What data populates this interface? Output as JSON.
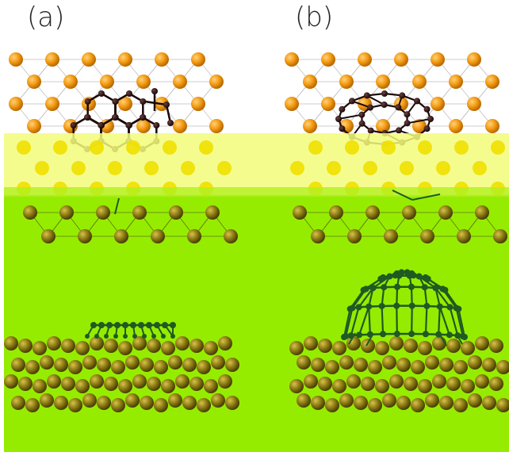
{
  "panels": [
    {
      "label": "(a)"
    },
    {
      "label": "(b)"
    }
  ],
  "colors": {
    "substrate_atom_top": "#f39a12",
    "substrate_atom_side": "#8a7a14",
    "carbon_atom": "#2a1414",
    "carbon_cluster_side": "#1e5a22",
    "overlay_yellow": "#f3fb7a",
    "overlay_green": "#96ec00",
    "background": "#ffffff"
  },
  "icons": {
    "substrate": "sphere-lattice-icon",
    "carbon_cluster_a": "flat-carbon-flake-icon",
    "carbon_cluster_b": "carbon-dome-cage-icon"
  }
}
